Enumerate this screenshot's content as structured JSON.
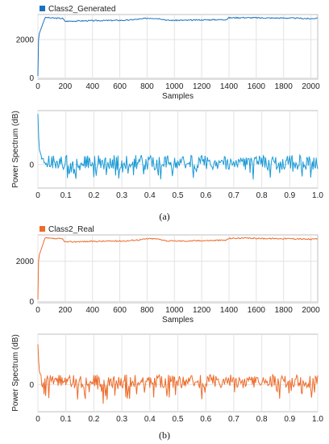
{
  "figure": {
    "captions": [
      "(a)",
      "(b)"
    ]
  },
  "chart_data": [
    {
      "type": "line",
      "panel": "a",
      "legend": "Class2_Generated",
      "legend_placement": "top-left",
      "color": "#1a72be",
      "xlabel": "Samples",
      "ylabel": "",
      "xlim": [
        0,
        2050
      ],
      "ylim": [
        -60,
        3300
      ],
      "xticks": [
        0,
        200,
        400,
        600,
        800,
        1000,
        1200,
        1400,
        1600,
        1800,
        2000
      ],
      "yticks": [
        0,
        2000
      ],
      "grid": true,
      "x": [
        0,
        5,
        10,
        20,
        30,
        40,
        50,
        60,
        80,
        100,
        150,
        180,
        200,
        250,
        300,
        400,
        500,
        600,
        650,
        700,
        750,
        800,
        850,
        900,
        950,
        1000,
        1100,
        1200,
        1300,
        1380,
        1400,
        1500,
        1600,
        1700,
        1800,
        1900,
        2000,
        2048
      ],
      "y": [
        100,
        2000,
        2300,
        2500,
        2700,
        2900,
        3100,
        3150,
        3130,
        3120,
        3110,
        3100,
        2950,
        2960,
        2970,
        2980,
        2990,
        3000,
        3000,
        3040,
        3060,
        3110,
        3110,
        3080,
        3000,
        3000,
        3000,
        3020,
        3030,
        3040,
        3130,
        3140,
        3130,
        3120,
        3120,
        3110,
        3080,
        3120
      ]
    },
    {
      "type": "line",
      "panel": "a",
      "legend": "",
      "color": "#1a9ad6",
      "xlabel": "",
      "ylabel": "Power Spectrum (dB)",
      "xlim": [
        0,
        1.0
      ],
      "ylim": [
        -35,
        80
      ],
      "xticks": [
        0,
        0.1,
        0.2,
        0.3,
        0.4,
        0.5,
        0.6,
        0.7,
        0.8,
        0.9,
        1.0
      ],
      "xticklabels": [
        "0",
        "0.1",
        "0.2",
        "0.3",
        "0.4",
        "0.5",
        "0.6",
        "0.7",
        "0.8",
        "0.9",
        "1.0"
      ],
      "yticks": [
        0
      ],
      "grid": true,
      "baseline": 3,
      "noise_amplitude": 11,
      "dip_depth": 18,
      "start_values": [
        75,
        40,
        22,
        18,
        14
      ]
    },
    {
      "type": "line",
      "panel": "b",
      "legend": "Class2_Real",
      "legend_placement": "top-left",
      "color": "#ee6b2a",
      "xlabel": "Samples",
      "ylabel": "",
      "xlim": [
        0,
        2050
      ],
      "ylim": [
        -60,
        3300
      ],
      "xticks": [
        0,
        200,
        400,
        600,
        800,
        1000,
        1200,
        1400,
        1600,
        1800,
        2000
      ],
      "yticks": [
        0,
        2000
      ],
      "grid": true,
      "x": [
        0,
        5,
        10,
        20,
        30,
        40,
        50,
        60,
        80,
        100,
        150,
        180,
        200,
        250,
        300,
        400,
        500,
        600,
        650,
        700,
        750,
        800,
        850,
        900,
        950,
        1000,
        1100,
        1200,
        1300,
        1380,
        1400,
        1500,
        1600,
        1700,
        1800,
        1900,
        2000,
        2048
      ],
      "y": [
        100,
        2000,
        2300,
        2500,
        2700,
        2900,
        3100,
        3150,
        3130,
        3120,
        3110,
        3100,
        2950,
        2960,
        2970,
        2980,
        2990,
        3000,
        3000,
        3040,
        3060,
        3110,
        3110,
        3080,
        3000,
        3000,
        3000,
        3020,
        3030,
        3040,
        3130,
        3140,
        3130,
        3120,
        3120,
        3110,
        3080,
        3120
      ]
    },
    {
      "type": "line",
      "panel": "b",
      "legend": "",
      "color": "#ee6b2a",
      "xlabel": "",
      "ylabel": "Power Spectrum (dB)",
      "xlim": [
        0,
        1.0
      ],
      "ylim": [
        -40,
        75
      ],
      "xticks": [
        0,
        0.1,
        0.2,
        0.3,
        0.4,
        0.5,
        0.6,
        0.7,
        0.8,
        0.9,
        1.0
      ],
      "xticklabels": [
        "0",
        "0.1",
        "0.2",
        "0.3",
        "0.4",
        "0.5",
        "0.6",
        "0.7",
        "0.8",
        "0.9",
        "1.0"
      ],
      "yticks": [
        0
      ],
      "grid": true,
      "baseline": 5,
      "noise_amplitude": 10,
      "dip_depth": 22,
      "start_values": [
        60,
        35,
        20,
        16,
        14
      ]
    }
  ]
}
